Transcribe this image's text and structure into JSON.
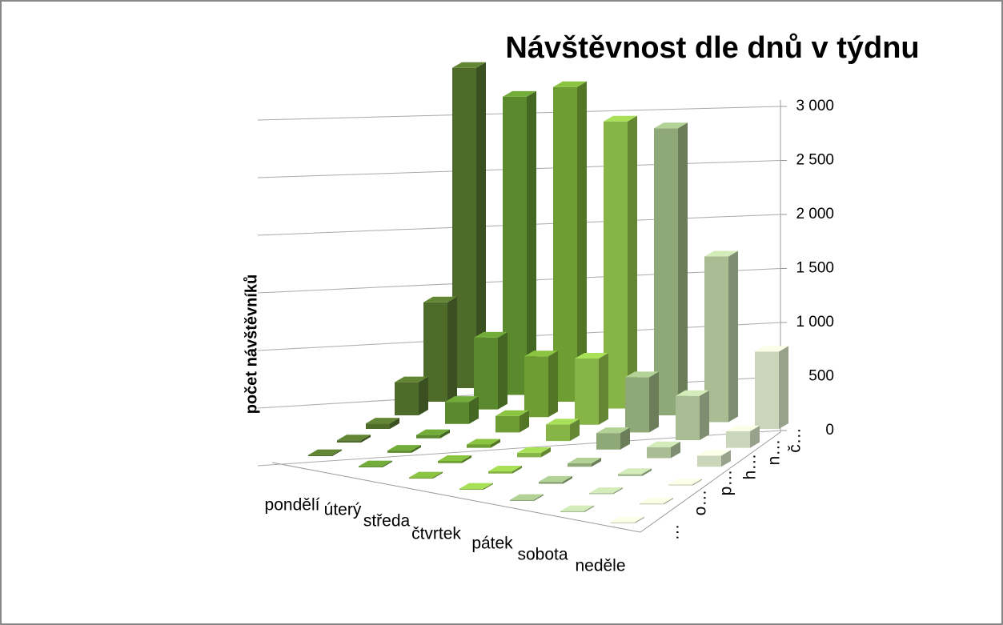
{
  "chart_data": {
    "type": "bar3d",
    "title": "Návštěvnost dle dnů v týdnu",
    "y_label": "počet návštěvníků",
    "categories": [
      "pondělí",
      "úterý",
      "středa",
      "čtvrtek",
      "pátek",
      "sobota",
      "neděle"
    ],
    "category_colors": [
      "#4f6b2a",
      "#5b8a2e",
      "#6e9d33",
      "#86b446",
      "#8fa877",
      "#a9bd95",
      "#c9d6b9"
    ],
    "series": [
      {
        "name": "…",
        "values": [
          10,
          10,
          10,
          10,
          10,
          10,
          10
        ]
      },
      {
        "name": "o…",
        "values": [
          20,
          20,
          20,
          20,
          20,
          10,
          10
        ]
      },
      {
        "name": "p…",
        "values": [
          50,
          30,
          30,
          40,
          30,
          20,
          10
        ]
      },
      {
        "name": "h…",
        "values": [
          300,
          200,
          150,
          150,
          150,
          100,
          100
        ]
      },
      {
        "name": "n…",
        "values": [
          900,
          650,
          550,
          600,
          500,
          400,
          150
        ]
      },
      {
        "name": "č…",
        "values": [
          2900,
          2700,
          2850,
          2600,
          2600,
          1500,
          700
        ]
      }
    ],
    "ylim": [
      0,
      3000
    ],
    "yticks": [
      {
        "value": 0,
        "label": "0"
      },
      {
        "value": 500,
        "label": "500"
      },
      {
        "value": 1000,
        "label": "1 000"
      },
      {
        "value": 1500,
        "label": "1 500"
      },
      {
        "value": 2000,
        "label": "2 000"
      },
      {
        "value": 2500,
        "label": "2 500"
      },
      {
        "value": 3000,
        "label": "3 000"
      }
    ],
    "grid": true
  }
}
